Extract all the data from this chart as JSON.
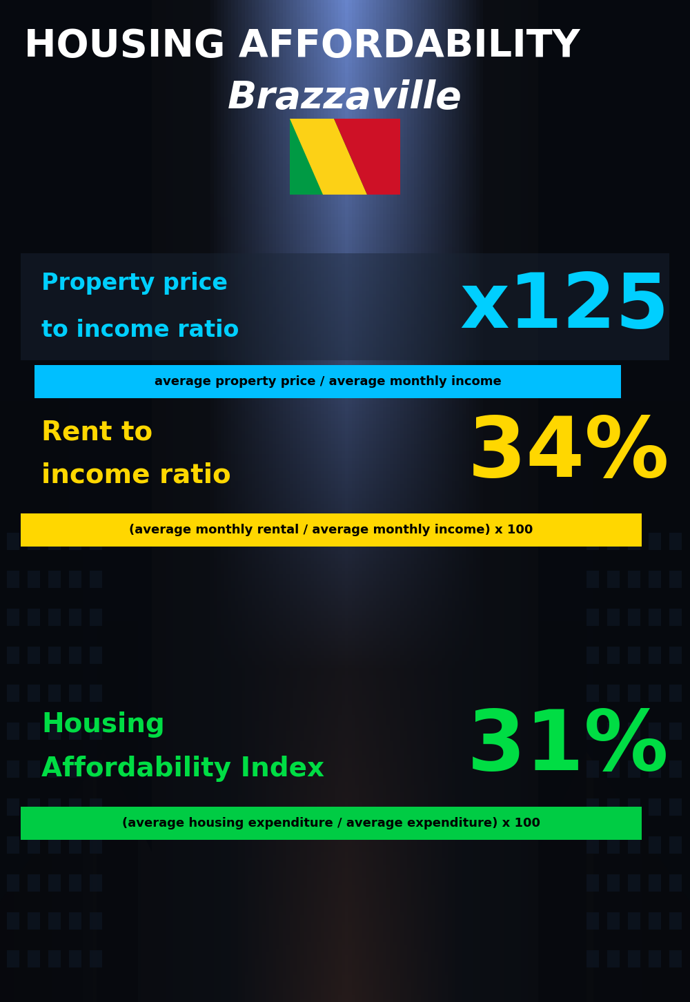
{
  "title_line1": "HOUSING AFFORDABILITY",
  "title_line2": "Brazzaville",
  "bg_color": "#060c14",
  "title_color": "#ffffff",
  "city_color": "#ffffff",
  "section1_label_line1": "Property price",
  "section1_label_line2": "to income ratio",
  "section1_value": "x125",
  "section1_label_color": "#00cfff",
  "section1_value_color": "#00cfff",
  "section1_box_color": "#00bfff",
  "section1_box_text": "average property price / average monthly income",
  "section1_box_text_color": "#000000",
  "section1_panel_color": "#1a2535",
  "section1_panel_alpha": 0.45,
  "section2_label_line1": "Rent to",
  "section2_label_line2": "income ratio",
  "section2_value": "34%",
  "section2_label_color": "#ffd700",
  "section2_value_color": "#ffd700",
  "section2_box_color": "#ffd700",
  "section2_box_text": "(average monthly rental / average monthly income) x 100",
  "section2_box_text_color": "#000000",
  "section3_label_line1": "Housing",
  "section3_label_line2": "Affordability Index",
  "section3_value": "31%",
  "section3_label_color": "#00dd44",
  "section3_value_color": "#00dd44",
  "section3_box_color": "#00cc44",
  "section3_box_text": "(average housing expenditure / average expenditure) x 100",
  "section3_box_text_color": "#000000"
}
